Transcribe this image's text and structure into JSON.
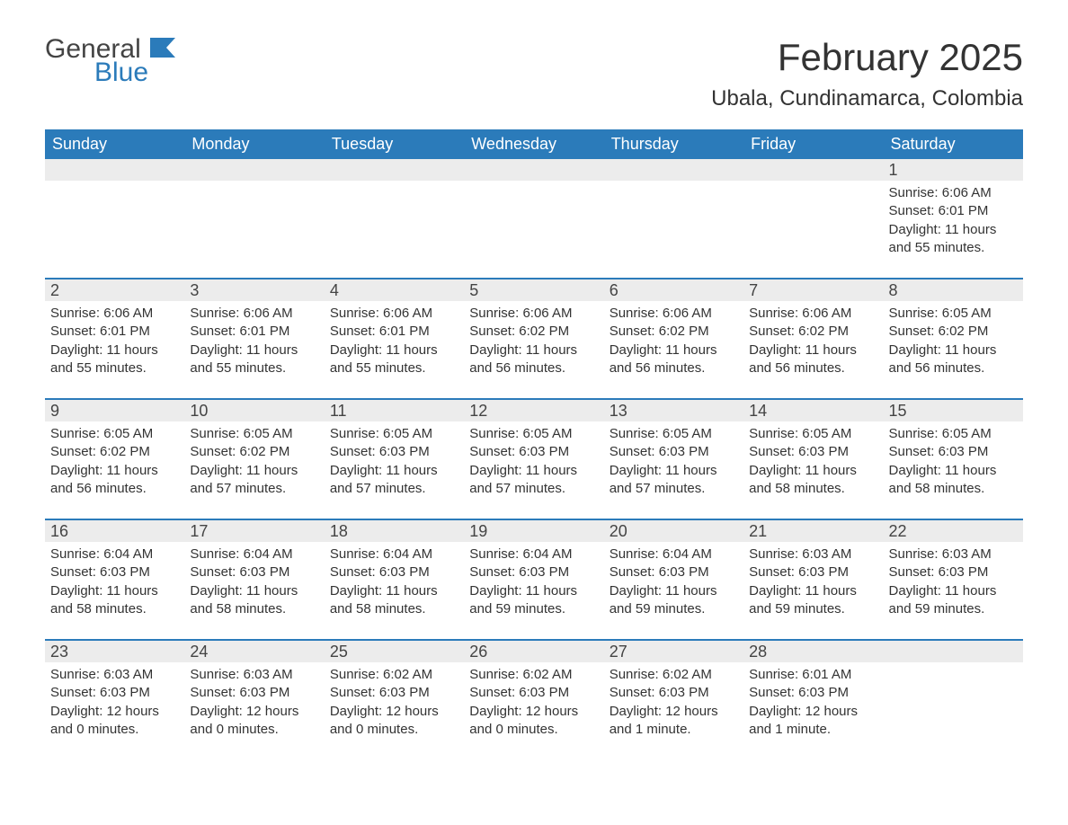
{
  "logo": {
    "general": "General",
    "blue": "Blue"
  },
  "title": "February 2025",
  "location": "Ubala, Cundinamarca, Colombia",
  "colors": {
    "header_bg": "#2b7bba",
    "header_text": "#ffffff",
    "daynum_bg": "#ececec",
    "week_divider": "#2b7bba",
    "body_text": "#333333",
    "logo_blue": "#2b7bba",
    "logo_dark": "#444444",
    "background": "#ffffff"
  },
  "weekdays": [
    "Sunday",
    "Monday",
    "Tuesday",
    "Wednesday",
    "Thursday",
    "Friday",
    "Saturday"
  ],
  "weeks": [
    [
      {
        "empty": true
      },
      {
        "empty": true
      },
      {
        "empty": true
      },
      {
        "empty": true
      },
      {
        "empty": true
      },
      {
        "empty": true
      },
      {
        "day": "1",
        "sunrise": "Sunrise: 6:06 AM",
        "sunset": "Sunset: 6:01 PM",
        "daylight": "Daylight: 11 hours and 55 minutes."
      }
    ],
    [
      {
        "day": "2",
        "sunrise": "Sunrise: 6:06 AM",
        "sunset": "Sunset: 6:01 PM",
        "daylight": "Daylight: 11 hours and 55 minutes."
      },
      {
        "day": "3",
        "sunrise": "Sunrise: 6:06 AM",
        "sunset": "Sunset: 6:01 PM",
        "daylight": "Daylight: 11 hours and 55 minutes."
      },
      {
        "day": "4",
        "sunrise": "Sunrise: 6:06 AM",
        "sunset": "Sunset: 6:01 PM",
        "daylight": "Daylight: 11 hours and 55 minutes."
      },
      {
        "day": "5",
        "sunrise": "Sunrise: 6:06 AM",
        "sunset": "Sunset: 6:02 PM",
        "daylight": "Daylight: 11 hours and 56 minutes."
      },
      {
        "day": "6",
        "sunrise": "Sunrise: 6:06 AM",
        "sunset": "Sunset: 6:02 PM",
        "daylight": "Daylight: 11 hours and 56 minutes."
      },
      {
        "day": "7",
        "sunrise": "Sunrise: 6:06 AM",
        "sunset": "Sunset: 6:02 PM",
        "daylight": "Daylight: 11 hours and 56 minutes."
      },
      {
        "day": "8",
        "sunrise": "Sunrise: 6:05 AM",
        "sunset": "Sunset: 6:02 PM",
        "daylight": "Daylight: 11 hours and 56 minutes."
      }
    ],
    [
      {
        "day": "9",
        "sunrise": "Sunrise: 6:05 AM",
        "sunset": "Sunset: 6:02 PM",
        "daylight": "Daylight: 11 hours and 56 minutes."
      },
      {
        "day": "10",
        "sunrise": "Sunrise: 6:05 AM",
        "sunset": "Sunset: 6:02 PM",
        "daylight": "Daylight: 11 hours and 57 minutes."
      },
      {
        "day": "11",
        "sunrise": "Sunrise: 6:05 AM",
        "sunset": "Sunset: 6:03 PM",
        "daylight": "Daylight: 11 hours and 57 minutes."
      },
      {
        "day": "12",
        "sunrise": "Sunrise: 6:05 AM",
        "sunset": "Sunset: 6:03 PM",
        "daylight": "Daylight: 11 hours and 57 minutes."
      },
      {
        "day": "13",
        "sunrise": "Sunrise: 6:05 AM",
        "sunset": "Sunset: 6:03 PM",
        "daylight": "Daylight: 11 hours and 57 minutes."
      },
      {
        "day": "14",
        "sunrise": "Sunrise: 6:05 AM",
        "sunset": "Sunset: 6:03 PM",
        "daylight": "Daylight: 11 hours and 58 minutes."
      },
      {
        "day": "15",
        "sunrise": "Sunrise: 6:05 AM",
        "sunset": "Sunset: 6:03 PM",
        "daylight": "Daylight: 11 hours and 58 minutes."
      }
    ],
    [
      {
        "day": "16",
        "sunrise": "Sunrise: 6:04 AM",
        "sunset": "Sunset: 6:03 PM",
        "daylight": "Daylight: 11 hours and 58 minutes."
      },
      {
        "day": "17",
        "sunrise": "Sunrise: 6:04 AM",
        "sunset": "Sunset: 6:03 PM",
        "daylight": "Daylight: 11 hours and 58 minutes."
      },
      {
        "day": "18",
        "sunrise": "Sunrise: 6:04 AM",
        "sunset": "Sunset: 6:03 PM",
        "daylight": "Daylight: 11 hours and 58 minutes."
      },
      {
        "day": "19",
        "sunrise": "Sunrise: 6:04 AM",
        "sunset": "Sunset: 6:03 PM",
        "daylight": "Daylight: 11 hours and 59 minutes."
      },
      {
        "day": "20",
        "sunrise": "Sunrise: 6:04 AM",
        "sunset": "Sunset: 6:03 PM",
        "daylight": "Daylight: 11 hours and 59 minutes."
      },
      {
        "day": "21",
        "sunrise": "Sunrise: 6:03 AM",
        "sunset": "Sunset: 6:03 PM",
        "daylight": "Daylight: 11 hours and 59 minutes."
      },
      {
        "day": "22",
        "sunrise": "Sunrise: 6:03 AM",
        "sunset": "Sunset: 6:03 PM",
        "daylight": "Daylight: 11 hours and 59 minutes."
      }
    ],
    [
      {
        "day": "23",
        "sunrise": "Sunrise: 6:03 AM",
        "sunset": "Sunset: 6:03 PM",
        "daylight": "Daylight: 12 hours and 0 minutes."
      },
      {
        "day": "24",
        "sunrise": "Sunrise: 6:03 AM",
        "sunset": "Sunset: 6:03 PM",
        "daylight": "Daylight: 12 hours and 0 minutes."
      },
      {
        "day": "25",
        "sunrise": "Sunrise: 6:02 AM",
        "sunset": "Sunset: 6:03 PM",
        "daylight": "Daylight: 12 hours and 0 minutes."
      },
      {
        "day": "26",
        "sunrise": "Sunrise: 6:02 AM",
        "sunset": "Sunset: 6:03 PM",
        "daylight": "Daylight: 12 hours and 0 minutes."
      },
      {
        "day": "27",
        "sunrise": "Sunrise: 6:02 AM",
        "sunset": "Sunset: 6:03 PM",
        "daylight": "Daylight: 12 hours and 1 minute."
      },
      {
        "day": "28",
        "sunrise": "Sunrise: 6:01 AM",
        "sunset": "Sunset: 6:03 PM",
        "daylight": "Daylight: 12 hours and 1 minute."
      },
      {
        "empty": true
      }
    ]
  ]
}
